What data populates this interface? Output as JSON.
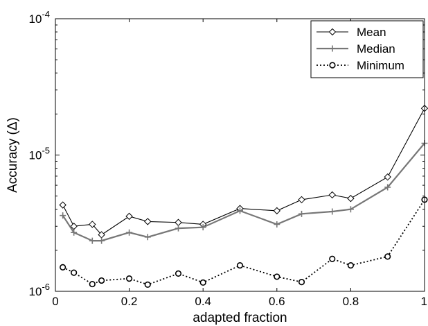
{
  "chart_data": {
    "type": "line",
    "xlabel": "adapted fraction",
    "ylabel": "Accuracy (Δ)",
    "xlim": [
      0,
      1
    ],
    "ylim": [
      1e-06,
      0.0001
    ],
    "yscale": "log",
    "grid": false,
    "legend_position": "top-right",
    "x_ticks": [
      {
        "value": 0,
        "label": "0"
      },
      {
        "value": 0.2,
        "label": "0.2"
      },
      {
        "value": 0.4,
        "label": "0.4"
      },
      {
        "value": 0.6,
        "label": "0.6"
      },
      {
        "value": 0.8,
        "label": "0.8"
      },
      {
        "value": 1,
        "label": "1"
      }
    ],
    "y_ticks": [
      {
        "value": 1e-06,
        "base": "10",
        "exp": "-6"
      },
      {
        "value": 1e-05,
        "base": "10",
        "exp": "-5"
      },
      {
        "value": 0.0001,
        "base": "10",
        "exp": "-4"
      }
    ],
    "series": [
      {
        "name": "Mean",
        "color": "#000000",
        "marker": "diamond",
        "line_style": "solid",
        "x": [
          0.02,
          0.05,
          0.1,
          0.125,
          0.2,
          0.25,
          0.333,
          0.4,
          0.5,
          0.6,
          0.667,
          0.75,
          0.8,
          0.9,
          1.0
        ],
        "y": [
          4.3e-06,
          3e-06,
          3.1e-06,
          2.6e-06,
          3.55e-06,
          3.25e-06,
          3.2e-06,
          3.1e-06,
          4.05e-06,
          3.9e-06,
          4.7e-06,
          5.1e-06,
          4.8e-06,
          6.9e-06,
          2.2e-05
        ]
      },
      {
        "name": "Median",
        "color": "#777777",
        "marker": "plus",
        "line_style": "solid",
        "x": [
          0.02,
          0.05,
          0.1,
          0.125,
          0.2,
          0.25,
          0.333,
          0.4,
          0.5,
          0.6,
          0.667,
          0.75,
          0.8,
          0.9,
          1.0
        ],
        "y": [
          3.6e-06,
          2.7e-06,
          2.35e-06,
          2.35e-06,
          2.7e-06,
          2.5e-06,
          2.9e-06,
          2.95e-06,
          3.9e-06,
          3.1e-06,
          3.7e-06,
          3.85e-06,
          4e-06,
          5.8e-06,
          1.22e-05
        ]
      },
      {
        "name": "Minimum",
        "color": "#000000",
        "marker": "circle",
        "line_style": "dotted",
        "x": [
          0.02,
          0.05,
          0.1,
          0.125,
          0.2,
          0.25,
          0.333,
          0.4,
          0.5,
          0.6,
          0.667,
          0.75,
          0.8,
          0.9,
          1.0
        ],
        "y": [
          1.5e-06,
          1.37e-06,
          1.13e-06,
          1.2e-06,
          1.24e-06,
          1.12e-06,
          1.35e-06,
          1.16e-06,
          1.55e-06,
          1.28e-06,
          1.17e-06,
          1.73e-06,
          1.55e-06,
          1.8e-06,
          4.7e-06
        ]
      }
    ]
  }
}
